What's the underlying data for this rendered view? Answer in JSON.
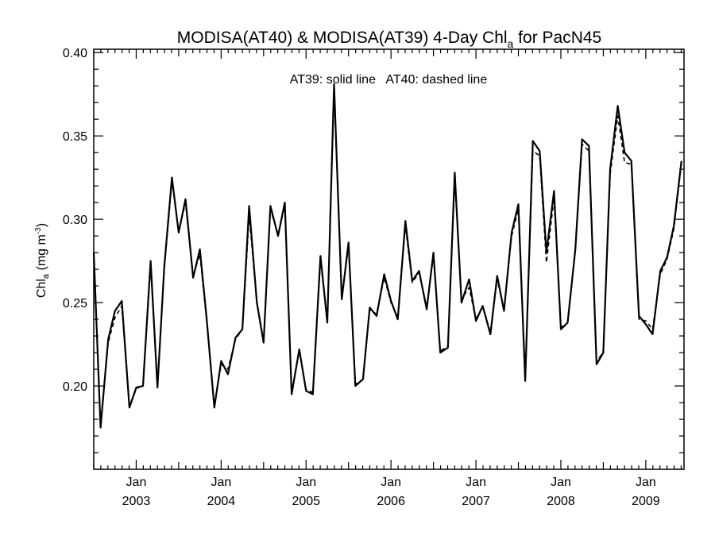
{
  "chart_data": {
    "type": "line",
    "title_main": "MODISA(AT40) & MODISA(AT39) 4-Day Chl",
    "title_sub": "a",
    "title_end": " for PacN45",
    "ylabel_main": "Chl",
    "ylabel_sub": "a",
    "ylabel_units": " (mg m",
    "ylabel_exp": "-3",
    "ylabel_close": ")",
    "annotation": "AT39: solid line   AT40: dashed line",
    "xlim": [
      2002.5,
      2009.45
    ],
    "ylim": [
      0.15,
      0.402
    ],
    "y_ticks": [
      0.2,
      0.25,
      0.3,
      0.35,
      0.4
    ],
    "y_tick_labels": [
      "0.20",
      "0.25",
      "0.30",
      "0.35",
      "0.40"
    ],
    "x_ticks": [
      {
        "pos": 2003.0,
        "month": "Jan",
        "year": "2003"
      },
      {
        "pos": 2004.0,
        "month": "Jan",
        "year": "2004"
      },
      {
        "pos": 2005.0,
        "month": "Jan",
        "year": "2005"
      },
      {
        "pos": 2006.0,
        "month": "Jan",
        "year": "2006"
      },
      {
        "pos": 2007.0,
        "month": "Jan",
        "year": "2007"
      },
      {
        "pos": 2008.0,
        "month": "Jan",
        "year": "2008"
      },
      {
        "pos": 2009.0,
        "month": "Jan",
        "year": "2009"
      }
    ],
    "series": [
      {
        "name": "AT39",
        "style": "solid",
        "color": "#000000",
        "x": [
          2002.5,
          2002.58,
          2002.67,
          2002.75,
          2002.83,
          2002.92,
          2003.0,
          2003.08,
          2003.17,
          2003.25,
          2003.33,
          2003.42,
          2003.5,
          2003.58,
          2003.67,
          2003.75,
          2003.83,
          2003.92,
          2004.0,
          2004.08,
          2004.17,
          2004.25,
          2004.33,
          2004.42,
          2004.5,
          2004.58,
          2004.67,
          2004.75,
          2004.83,
          2004.92,
          2005.0,
          2005.08,
          2005.17,
          2005.25,
          2005.33,
          2005.42,
          2005.5,
          2005.58,
          2005.67,
          2005.75,
          2005.83,
          2005.92,
          2006.0,
          2006.08,
          2006.17,
          2006.25,
          2006.33,
          2006.42,
          2006.5,
          2006.58,
          2006.67,
          2006.75,
          2006.83,
          2006.92,
          2007.0,
          2007.08,
          2007.17,
          2007.25,
          2007.33,
          2007.42,
          2007.5,
          2007.58,
          2007.67,
          2007.75,
          2007.83,
          2007.92,
          2008.0,
          2008.08,
          2008.17,
          2008.25,
          2008.33,
          2008.42,
          2008.5,
          2008.58,
          2008.67,
          2008.75,
          2008.83,
          2008.92,
          2009.0,
          2009.08,
          2009.17,
          2009.25,
          2009.33,
          2009.42
        ],
        "y": [
          0.28,
          0.175,
          0.228,
          0.245,
          0.251,
          0.187,
          0.199,
          0.2,
          0.275,
          0.199,
          0.271,
          0.325,
          0.292,
          0.312,
          0.265,
          0.282,
          0.24,
          0.187,
          0.215,
          0.207,
          0.229,
          0.234,
          0.308,
          0.25,
          0.226,
          0.308,
          0.29,
          0.31,
          0.195,
          0.222,
          0.197,
          0.195,
          0.278,
          0.238,
          0.381,
          0.252,
          0.286,
          0.2,
          0.204,
          0.247,
          0.242,
          0.267,
          0.251,
          0.24,
          0.299,
          0.263,
          0.269,
          0.246,
          0.28,
          0.22,
          0.223,
          0.328,
          0.25,
          0.264,
          0.239,
          0.248,
          0.231,
          0.266,
          0.245,
          0.292,
          0.309,
          0.203,
          0.347,
          0.341,
          0.28,
          0.317,
          0.234,
          0.238,
          0.282,
          0.348,
          0.344,
          0.213,
          0.22,
          0.33,
          0.368,
          0.34,
          0.335,
          0.242,
          0.237,
          0.231,
          0.269,
          0.277,
          0.296,
          0.335
        ]
      },
      {
        "name": "AT40",
        "style": "dashed",
        "color": "#000000",
        "x": [
          2002.5,
          2002.58,
          2002.67,
          2002.75,
          2002.83,
          2002.92,
          2003.0,
          2003.08,
          2003.17,
          2003.25,
          2003.33,
          2003.42,
          2003.5,
          2003.58,
          2003.67,
          2003.75,
          2003.83,
          2003.92,
          2004.0,
          2004.08,
          2004.17,
          2004.25,
          2004.33,
          2004.42,
          2004.5,
          2004.58,
          2004.67,
          2004.75,
          2004.83,
          2004.92,
          2005.0,
          2005.08,
          2005.17,
          2005.25,
          2005.33,
          2005.42,
          2005.5,
          2005.58,
          2005.67,
          2005.75,
          2005.83,
          2005.92,
          2006.0,
          2006.08,
          2006.17,
          2006.25,
          2006.33,
          2006.42,
          2006.5,
          2006.58,
          2006.67,
          2006.75,
          2006.83,
          2006.92,
          2007.0,
          2007.08,
          2007.17,
          2007.25,
          2007.33,
          2007.42,
          2007.5,
          2007.58,
          2007.67,
          2007.75,
          2007.83,
          2007.92,
          2008.0,
          2008.08,
          2008.17,
          2008.25,
          2008.33,
          2008.42,
          2008.5,
          2008.58,
          2008.67,
          2008.75,
          2008.83,
          2008.92,
          2009.0,
          2009.08,
          2009.17,
          2009.25,
          2009.33,
          2009.42
        ],
        "y": [
          0.279,
          0.176,
          0.226,
          0.241,
          0.248,
          0.188,
          0.198,
          0.201,
          0.272,
          0.2,
          0.27,
          0.323,
          0.293,
          0.31,
          0.266,
          0.279,
          0.239,
          0.188,
          0.213,
          0.21,
          0.228,
          0.234,
          0.302,
          0.251,
          0.227,
          0.306,
          0.291,
          0.308,
          0.196,
          0.221,
          0.198,
          0.196,
          0.276,
          0.24,
          0.377,
          0.253,
          0.284,
          0.201,
          0.204,
          0.246,
          0.243,
          0.265,
          0.25,
          0.241,
          0.296,
          0.262,
          0.268,
          0.247,
          0.278,
          0.221,
          0.224,
          0.324,
          0.252,
          0.259,
          0.24,
          0.248,
          0.232,
          0.264,
          0.246,
          0.29,
          0.306,
          0.204,
          0.341,
          0.338,
          0.274,
          0.313,
          0.235,
          0.238,
          0.281,
          0.345,
          0.341,
          0.214,
          0.221,
          0.327,
          0.362,
          0.334,
          0.333,
          0.24,
          0.239,
          0.234,
          0.267,
          0.276,
          0.294,
          0.334
        ]
      }
    ]
  }
}
